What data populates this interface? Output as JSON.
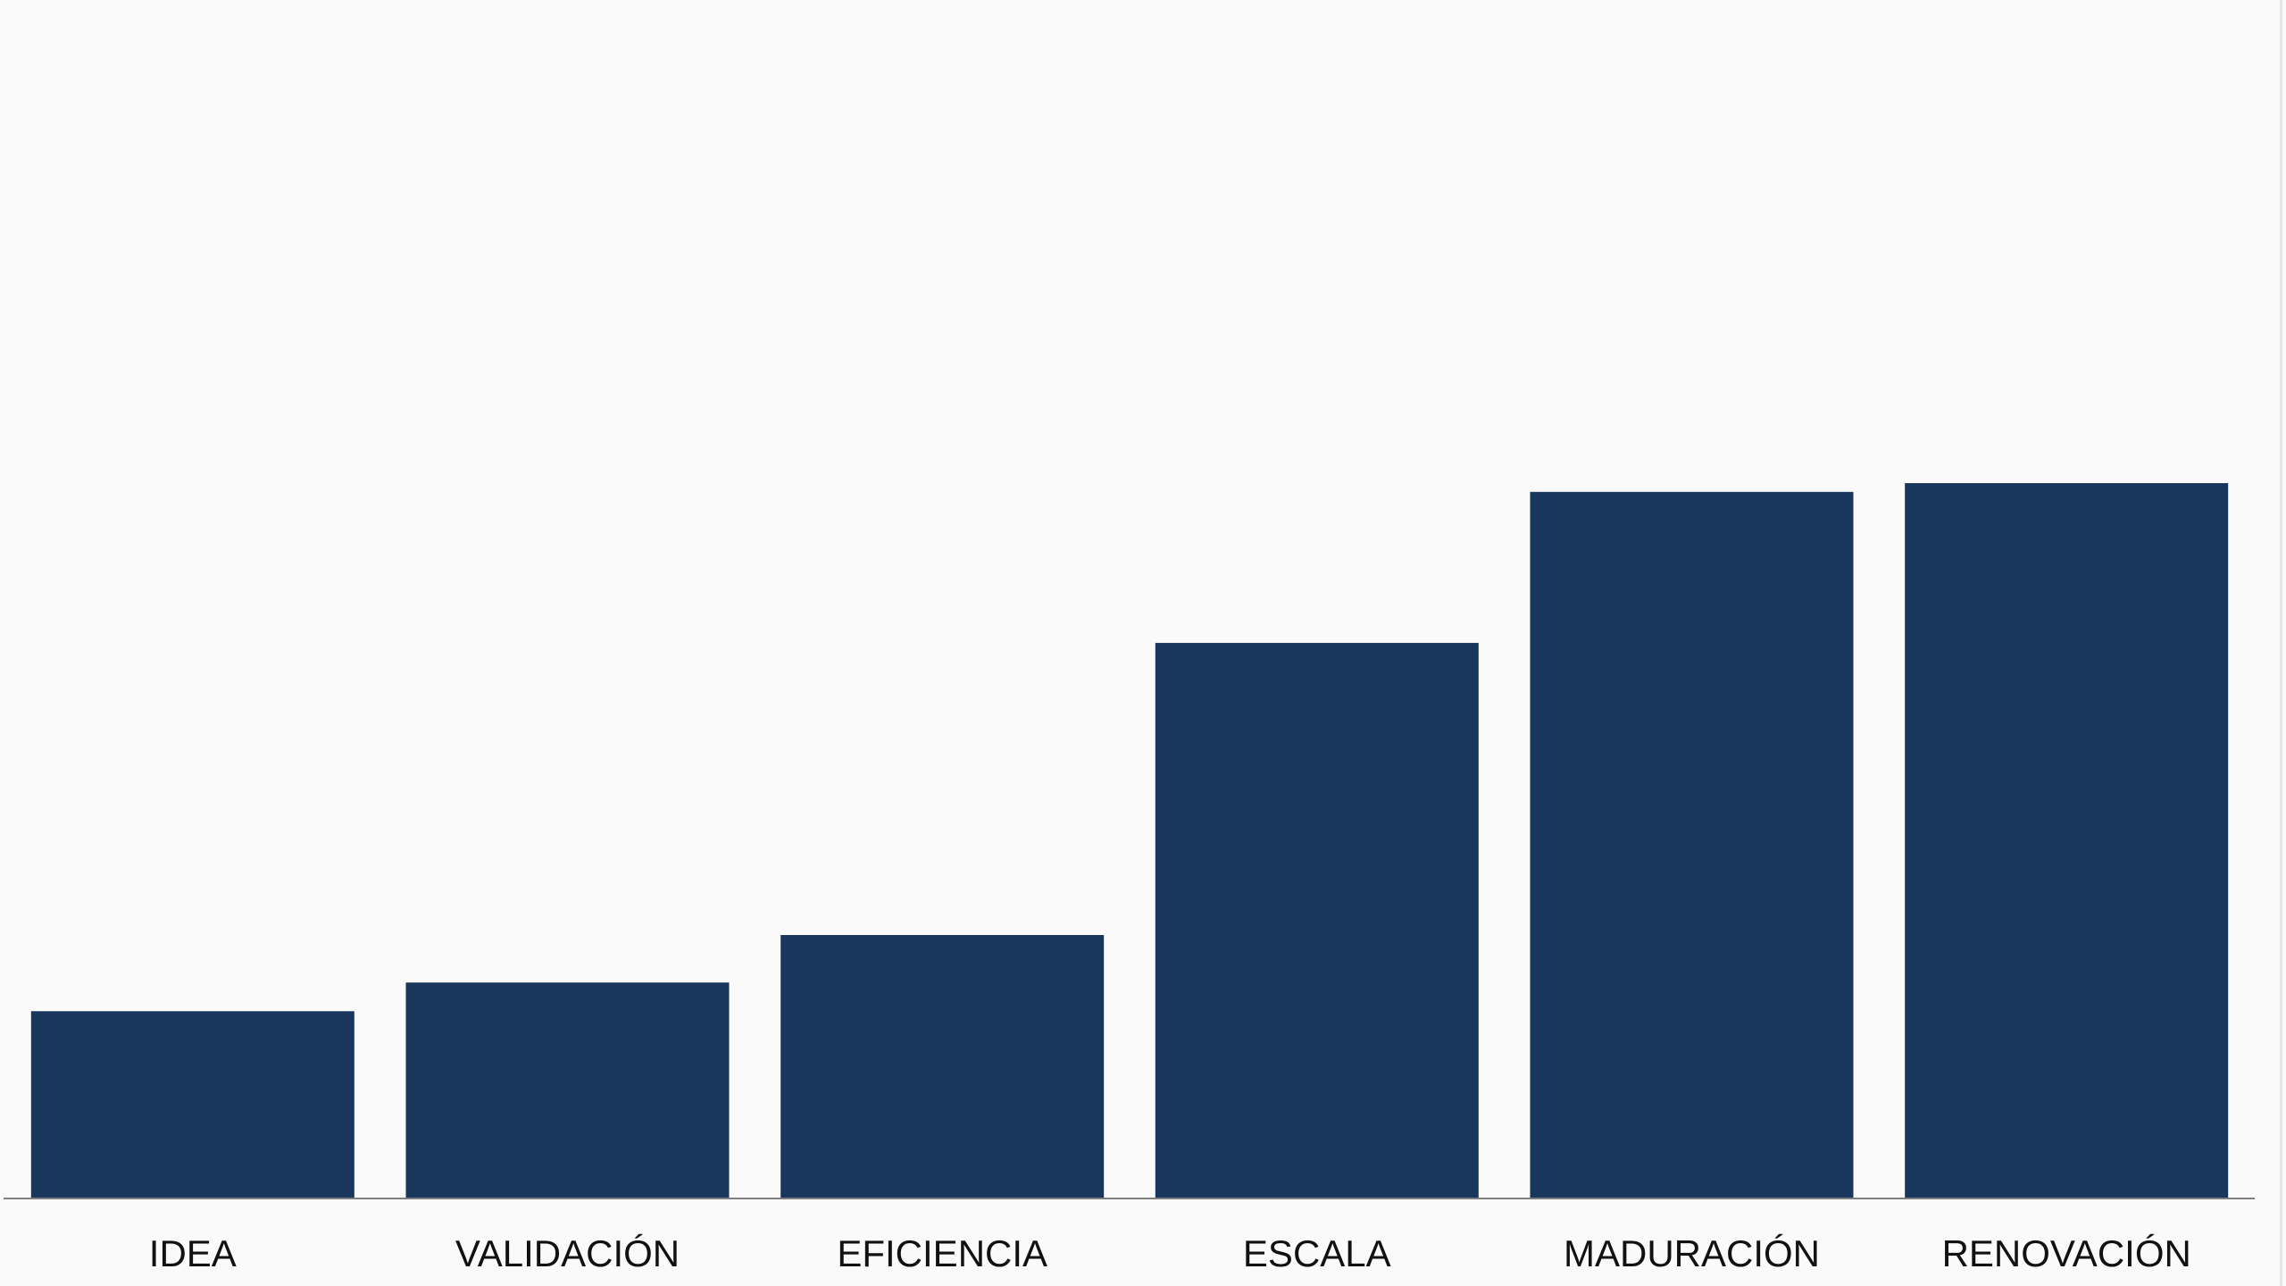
{
  "chart_data": {
    "type": "bar",
    "categories": [
      "IDEA",
      "VALIDACIÓN",
      "EFICIENCIA",
      "ESCALA",
      "MADURACIÓN",
      "RENOVACIÓN"
    ],
    "values": [
      15.0,
      17.3,
      21.1,
      44.5,
      56.6,
      57.3
    ],
    "ylim": [
      0,
      96
    ],
    "grid": false,
    "legend": "none",
    "title": "",
    "xlabel": "",
    "ylabel": "",
    "colors": {
      "bar": "#19375d",
      "axis": "#7f7f7f",
      "background": "#fafafa",
      "label": "#111111"
    }
  }
}
